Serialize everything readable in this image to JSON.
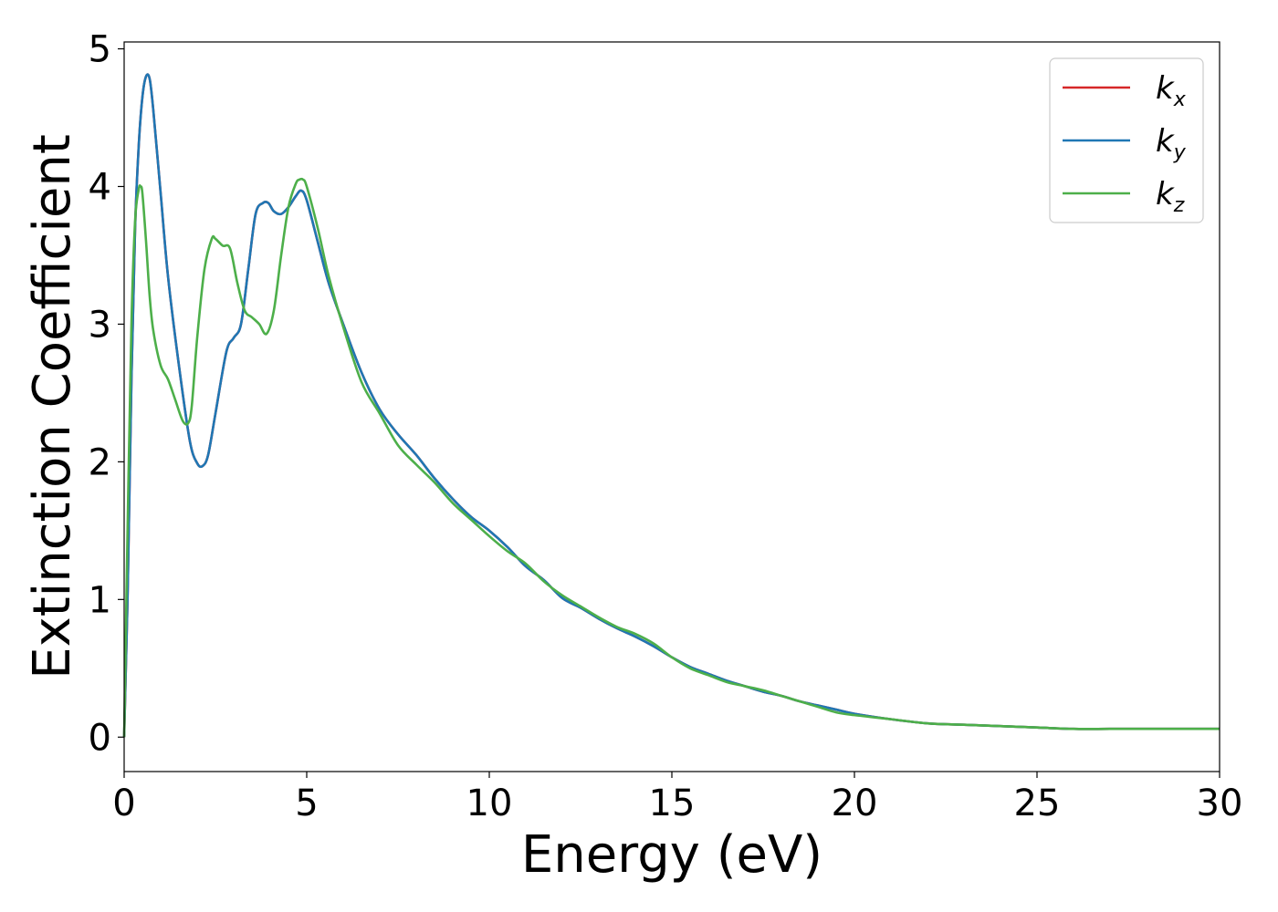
{
  "chart_data": {
    "type": "line",
    "xlabel": "Energy (eV)",
    "ylabel": "Extinction Coefficient",
    "xlim": [
      0,
      30
    ],
    "ylim": [
      -0.25,
      5.05
    ],
    "x_ticks": [
      "0",
      "5",
      "10",
      "15",
      "20",
      "25",
      "30"
    ],
    "y_ticks": [
      "0",
      "1",
      "2",
      "3",
      "4",
      "5"
    ],
    "grid": false,
    "legend_position": "top-right",
    "series": [
      {
        "name": "k",
        "subscript": "x",
        "color": "#d62728",
        "x": [
          0,
          0.1,
          0.2,
          0.3,
          0.4,
          0.5,
          0.6,
          0.7,
          0.8,
          1.0,
          1.2,
          1.5,
          1.8,
          2.0,
          2.15,
          2.3,
          2.5,
          2.8,
          3.0,
          3.2,
          3.4,
          3.6,
          3.8,
          3.95,
          4.1,
          4.3,
          4.5,
          4.7,
          4.85,
          5.0,
          5.3,
          5.6,
          6.0,
          6.5,
          7.0,
          7.5,
          8.0,
          8.5,
          9.0,
          9.5,
          10.0,
          10.5,
          11.0,
          11.5,
          12.0,
          12.5,
          13.0,
          13.5,
          14.0,
          14.5,
          15.0,
          15.5,
          16.0,
          16.5,
          17.0,
          17.5,
          18.0,
          18.5,
          19.0,
          19.5,
          20.0,
          21.0,
          22.0,
          23.0,
          24.0,
          25.0,
          26.0,
          27.0,
          28.0,
          29.0,
          30.0
        ],
        "values": [
          0.0,
          1.1,
          2.6,
          3.7,
          4.3,
          4.65,
          4.8,
          4.78,
          4.55,
          3.95,
          3.35,
          2.7,
          2.15,
          1.99,
          1.97,
          2.05,
          2.35,
          2.8,
          2.9,
          3.0,
          3.4,
          3.8,
          3.88,
          3.88,
          3.82,
          3.8,
          3.85,
          3.93,
          3.97,
          3.9,
          3.6,
          3.3,
          3.0,
          2.65,
          2.38,
          2.2,
          2.05,
          1.88,
          1.73,
          1.6,
          1.5,
          1.38,
          1.24,
          1.14,
          1.01,
          0.94,
          0.86,
          0.79,
          0.73,
          0.66,
          0.58,
          0.51,
          0.46,
          0.41,
          0.37,
          0.33,
          0.3,
          0.26,
          0.23,
          0.2,
          0.17,
          0.13,
          0.1,
          0.09,
          0.08,
          0.07,
          0.06,
          0.06,
          0.06,
          0.06,
          0.06
        ]
      },
      {
        "name": "k",
        "subscript": "y",
        "color": "#1f77b4",
        "x": [
          0,
          0.1,
          0.2,
          0.3,
          0.4,
          0.5,
          0.6,
          0.7,
          0.8,
          1.0,
          1.2,
          1.5,
          1.8,
          2.0,
          2.15,
          2.3,
          2.5,
          2.8,
          3.0,
          3.2,
          3.4,
          3.6,
          3.8,
          3.95,
          4.1,
          4.3,
          4.5,
          4.7,
          4.85,
          5.0,
          5.3,
          5.6,
          6.0,
          6.5,
          7.0,
          7.5,
          8.0,
          8.5,
          9.0,
          9.5,
          10.0,
          10.5,
          11.0,
          11.5,
          12.0,
          12.5,
          13.0,
          13.5,
          14.0,
          14.5,
          15.0,
          15.5,
          16.0,
          16.5,
          17.0,
          17.5,
          18.0,
          18.5,
          19.0,
          19.5,
          20.0,
          21.0,
          22.0,
          23.0,
          24.0,
          25.0,
          26.0,
          27.0,
          28.0,
          29.0,
          30.0
        ],
        "values": [
          0.0,
          1.1,
          2.6,
          3.7,
          4.3,
          4.65,
          4.8,
          4.78,
          4.55,
          3.95,
          3.35,
          2.7,
          2.15,
          1.99,
          1.97,
          2.05,
          2.35,
          2.8,
          2.9,
          3.0,
          3.4,
          3.8,
          3.88,
          3.88,
          3.82,
          3.8,
          3.85,
          3.93,
          3.97,
          3.9,
          3.6,
          3.3,
          3.0,
          2.65,
          2.38,
          2.2,
          2.05,
          1.88,
          1.73,
          1.6,
          1.5,
          1.38,
          1.24,
          1.14,
          1.01,
          0.94,
          0.86,
          0.79,
          0.73,
          0.66,
          0.58,
          0.51,
          0.46,
          0.41,
          0.37,
          0.33,
          0.3,
          0.26,
          0.23,
          0.2,
          0.17,
          0.13,
          0.1,
          0.09,
          0.08,
          0.07,
          0.06,
          0.06,
          0.06,
          0.06,
          0.06
        ]
      },
      {
        "name": "k",
        "subscript": "z",
        "color": "#4daf4a",
        "x": [
          0,
          0.1,
          0.2,
          0.3,
          0.4,
          0.45,
          0.5,
          0.6,
          0.7,
          0.8,
          1.0,
          1.2,
          1.4,
          1.6,
          1.75,
          1.85,
          2.0,
          2.2,
          2.4,
          2.5,
          2.7,
          2.9,
          3.1,
          3.3,
          3.5,
          3.7,
          3.9,
          4.1,
          4.3,
          4.5,
          4.7,
          4.8,
          4.9,
          5.0,
          5.3,
          5.6,
          6.0,
          6.5,
          7.0,
          7.5,
          8.0,
          8.5,
          9.0,
          9.5,
          10.0,
          10.5,
          11.0,
          11.5,
          12.0,
          12.5,
          13.0,
          13.5,
          14.0,
          14.5,
          15.0,
          15.5,
          16.0,
          16.5,
          17.0,
          17.5,
          18.0,
          18.5,
          19.0,
          19.5,
          20.0,
          21.0,
          22.0,
          23.0,
          24.0,
          25.0,
          26.0,
          27.0,
          28.0,
          29.0,
          30.0
        ],
        "values": [
          0.0,
          1.6,
          3.0,
          3.75,
          3.98,
          4.0,
          3.95,
          3.6,
          3.2,
          2.95,
          2.7,
          2.6,
          2.45,
          2.3,
          2.28,
          2.4,
          2.9,
          3.4,
          3.62,
          3.62,
          3.57,
          3.55,
          3.3,
          3.1,
          3.05,
          3.0,
          2.93,
          3.1,
          3.5,
          3.85,
          4.02,
          4.05,
          4.05,
          4.0,
          3.7,
          3.35,
          2.98,
          2.58,
          2.35,
          2.12,
          1.98,
          1.85,
          1.7,
          1.58,
          1.46,
          1.35,
          1.26,
          1.13,
          1.03,
          0.95,
          0.87,
          0.8,
          0.75,
          0.68,
          0.58,
          0.5,
          0.45,
          0.4,
          0.37,
          0.34,
          0.3,
          0.26,
          0.22,
          0.18,
          0.16,
          0.13,
          0.1,
          0.09,
          0.08,
          0.07,
          0.06,
          0.06,
          0.06,
          0.06,
          0.06
        ]
      }
    ]
  }
}
